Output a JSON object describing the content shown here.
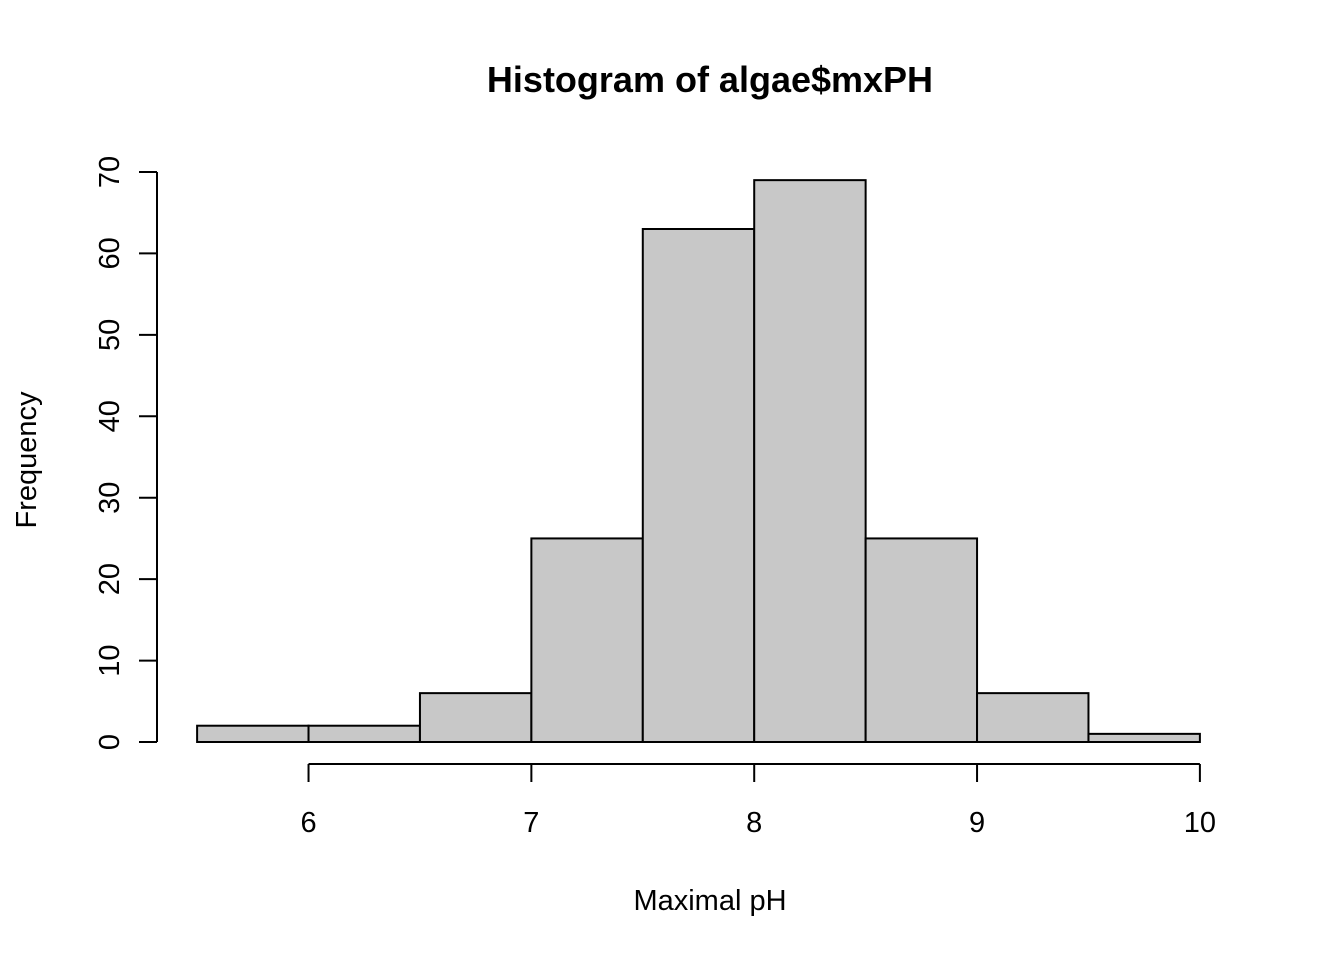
{
  "chart_data": {
    "type": "bar",
    "title": "Histogram of algae$mxPH",
    "xlabel": "Maximal pH",
    "ylabel": "Frequency",
    "bins": [
      {
        "x0": 5.5,
        "x1": 6.0,
        "count": 2
      },
      {
        "x0": 6.0,
        "x1": 6.5,
        "count": 2
      },
      {
        "x0": 6.5,
        "x1": 7.0,
        "count": 6
      },
      {
        "x0": 7.0,
        "x1": 7.5,
        "count": 25
      },
      {
        "x0": 7.5,
        "x1": 8.0,
        "count": 63
      },
      {
        "x0": 8.0,
        "x1": 8.5,
        "count": 69
      },
      {
        "x0": 8.5,
        "x1": 9.0,
        "count": 25
      },
      {
        "x0": 9.0,
        "x1": 9.5,
        "count": 6
      },
      {
        "x0": 9.5,
        "x1": 10.0,
        "count": 1
      }
    ],
    "xticks": [
      6,
      7,
      8,
      9,
      10
    ],
    "yticks": [
      0,
      10,
      20,
      30,
      40,
      50,
      60,
      70
    ],
    "xlim": [
      5.32,
      10.18
    ],
    "ylim": [
      0,
      70
    ],
    "bar_color": "#c8c8c8",
    "edge_color": "#000000",
    "grid": false,
    "legend": "none"
  }
}
